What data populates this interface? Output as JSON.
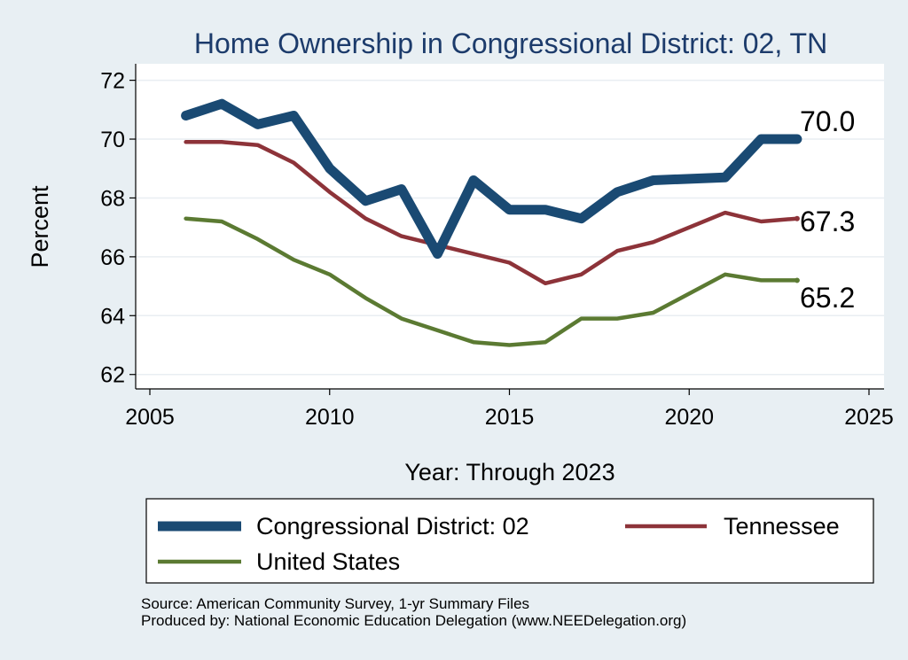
{
  "chart_data": {
    "type": "line",
    "title": "Home Ownership in Congressional District:  02, TN",
    "xlabel": "Year: Through 2023",
    "ylabel": "Percent",
    "xlim": [
      2005,
      2025
    ],
    "ylim": [
      61.6,
      72.5
    ],
    "xticks": [
      2005,
      2010,
      2015,
      2020,
      2025
    ],
    "yticks": [
      62,
      64,
      66,
      68,
      70,
      72
    ],
    "grid": true,
    "legend_position": "bottom",
    "x": [
      2006,
      2007,
      2008,
      2009,
      2010,
      2011,
      2012,
      2013,
      2014,
      2015,
      2016,
      2017,
      2018,
      2019,
      2021,
      2022,
      2023
    ],
    "series": [
      {
        "name": "Congressional District:  02",
        "color": "#1a4a73",
        "end_label": "70.0",
        "values": [
          70.8,
          71.2,
          70.5,
          70.8,
          69.0,
          67.9,
          68.3,
          66.1,
          68.6,
          67.6,
          67.6,
          67.3,
          68.2,
          68.6,
          68.7,
          70.0,
          70.0
        ]
      },
      {
        "name": "Tennessee",
        "color": "#8d3339",
        "end_label": "67.3",
        "values": [
          69.9,
          69.9,
          69.8,
          69.2,
          68.2,
          67.3,
          66.7,
          66.4,
          66.1,
          65.8,
          65.1,
          65.4,
          66.2,
          66.5,
          67.5,
          67.2,
          67.3
        ]
      },
      {
        "name": "United States",
        "color": "#5b7a32",
        "end_label": "65.2",
        "values": [
          67.3,
          67.2,
          66.6,
          65.9,
          65.4,
          64.6,
          63.9,
          63.5,
          63.1,
          63.0,
          63.1,
          63.9,
          63.9,
          64.1,
          65.4,
          65.2,
          65.2
        ]
      }
    ]
  },
  "footer": {
    "source": "Source: American Community Survey, 1-yr Summary Files",
    "producer": "Produced by: National Economic Education Delegation (www.NEEDelegation.org)"
  }
}
